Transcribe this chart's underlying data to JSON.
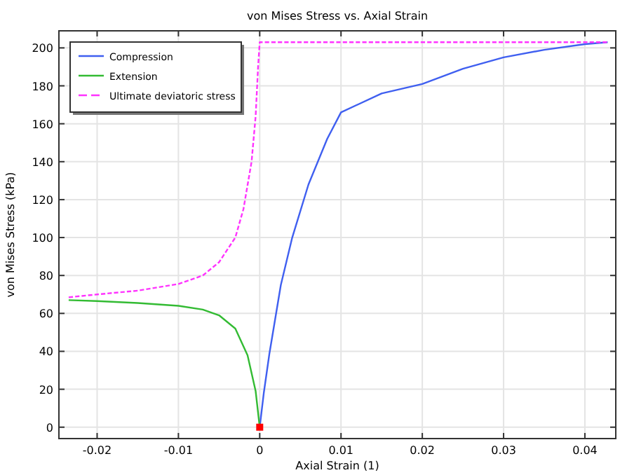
{
  "chart_data": {
    "type": "line",
    "title": "von Mises Stress vs. Axial Strain",
    "xlabel": "Axial Strain (1)",
    "ylabel": "von Mises Stress (kPa)",
    "xlim": [
      -0.0247,
      0.0438
    ],
    "ylim": [
      -6,
      209
    ],
    "xticks": [
      -0.02,
      -0.01,
      0,
      0.01,
      0.02,
      0.03,
      0.04
    ],
    "yticks": [
      0,
      20,
      40,
      60,
      80,
      100,
      120,
      140,
      160,
      180,
      200
    ],
    "grid": true,
    "legend": "top left",
    "series": [
      {
        "name": "Compression",
        "color": "#3f5ff0",
        "line_style": "solid",
        "x": [
          0,
          0.0005,
          0.0012,
          0.0026,
          0.004,
          0.006,
          0.0083,
          0.01,
          0.015,
          0.02,
          0.025,
          0.03,
          0.035,
          0.04,
          0.0428
        ],
        "values": [
          0,
          18,
          39,
          75,
          100,
          128,
          152,
          166,
          176,
          181,
          189,
          195,
          199,
          202,
          203
        ]
      },
      {
        "name": "Extension",
        "color": "#33bb33",
        "line_style": "solid",
        "x": [
          0,
          -0.0005,
          -0.0015,
          -0.003,
          -0.005,
          -0.007,
          -0.01,
          -0.015,
          -0.02,
          -0.0235
        ],
        "values": [
          0,
          19,
          38,
          52,
          59,
          62,
          64,
          65.5,
          66.5,
          67
        ]
      },
      {
        "name": "Ultimate deviatoric stress",
        "color": "#ff33ff",
        "line_style": "dashed",
        "x": [
          -0.0235,
          -0.02,
          -0.015,
          -0.01,
          -0.007,
          -0.005,
          -0.003,
          -0.002,
          -0.001,
          -0.0005,
          -0.0002,
          0,
          0.0428
        ],
        "values": [
          68.5,
          70,
          72,
          75.5,
          80,
          87,
          100,
          115,
          140,
          164,
          190,
          203,
          203
        ]
      },
      {
        "type": "scatter",
        "color": "#ff0000",
        "marker": "square",
        "x": [
          0
        ],
        "values": [
          0
        ]
      }
    ]
  }
}
